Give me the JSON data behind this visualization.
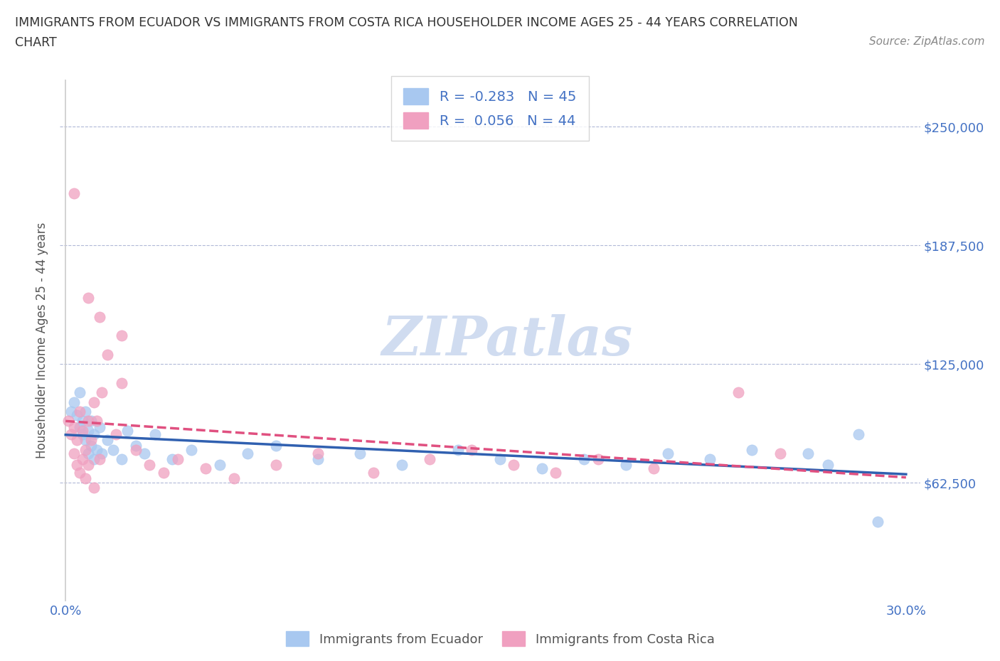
{
  "title_line1": "IMMIGRANTS FROM ECUADOR VS IMMIGRANTS FROM COSTA RICA HOUSEHOLDER INCOME AGES 25 - 44 YEARS CORRELATION",
  "title_line2": "CHART",
  "source": "Source: ZipAtlas.com",
  "ylabel": "Householder Income Ages 25 - 44 years",
  "xlim": [
    -0.002,
    0.305
  ],
  "ylim": [
    0,
    275000
  ],
  "yticks": [
    0,
    62500,
    125000,
    187500,
    250000
  ],
  "ytick_labels_right": [
    "",
    "$62,500",
    "$125,000",
    "$187,500",
    "$250,000"
  ],
  "xtick_vals": [
    0.0,
    0.05,
    0.1,
    0.15,
    0.2,
    0.25,
    0.3
  ],
  "ecuador_color": "#A8C8F0",
  "costa_rica_color": "#F0A0C0",
  "ecuador_line_color": "#3060B0",
  "costa_rica_line_color": "#E05080",
  "legend_ecuador_label": "R = -0.283   N = 45",
  "legend_costa_rica_label": "R =  0.056   N = 44",
  "legend_label_ecuador": "Immigrants from Ecuador",
  "legend_label_costa_rica": "Immigrants from Costa Rica",
  "tick_color": "#4472C4",
  "background_color": "#FFFFFF",
  "grid_color": "#B0B8D8",
  "watermark_color": "#D0DCF0",
  "ecuador_x": [
    0.002,
    0.003,
    0.004,
    0.005,
    0.005,
    0.006,
    0.006,
    0.007,
    0.007,
    0.008,
    0.008,
    0.009,
    0.009,
    0.01,
    0.01,
    0.011,
    0.012,
    0.013,
    0.015,
    0.017,
    0.02,
    0.022,
    0.025,
    0.028,
    0.032,
    0.038,
    0.045,
    0.055,
    0.065,
    0.075,
    0.09,
    0.105,
    0.12,
    0.14,
    0.155,
    0.17,
    0.185,
    0.2,
    0.215,
    0.23,
    0.245,
    0.265,
    0.272,
    0.283,
    0.29
  ],
  "ecuador_y": [
    100000,
    105000,
    98000,
    92000,
    110000,
    88000,
    95000,
    85000,
    100000,
    90000,
    78000,
    95000,
    82000,
    88000,
    75000,
    80000,
    92000,
    78000,
    85000,
    80000,
    75000,
    90000,
    82000,
    78000,
    88000,
    75000,
    80000,
    72000,
    78000,
    82000,
    75000,
    78000,
    72000,
    80000,
    75000,
    70000,
    75000,
    72000,
    78000,
    75000,
    80000,
    78000,
    72000,
    88000,
    42000
  ],
  "costa_rica_x": [
    0.001,
    0.002,
    0.003,
    0.003,
    0.004,
    0.004,
    0.005,
    0.005,
    0.006,
    0.006,
    0.007,
    0.007,
    0.008,
    0.008,
    0.009,
    0.01,
    0.01,
    0.011,
    0.012,
    0.013,
    0.015,
    0.018,
    0.02,
    0.025,
    0.03,
    0.035,
    0.04,
    0.05,
    0.06,
    0.075,
    0.09,
    0.11,
    0.13,
    0.145,
    0.16,
    0.175,
    0.19,
    0.21,
    0.24,
    0.255,
    0.003,
    0.008,
    0.012,
    0.02
  ],
  "costa_rica_y": [
    95000,
    88000,
    92000,
    78000,
    85000,
    72000,
    100000,
    68000,
    90000,
    75000,
    80000,
    65000,
    95000,
    72000,
    85000,
    105000,
    60000,
    95000,
    75000,
    110000,
    130000,
    88000,
    115000,
    80000,
    72000,
    68000,
    75000,
    70000,
    65000,
    72000,
    78000,
    68000,
    75000,
    80000,
    72000,
    68000,
    75000,
    70000,
    110000,
    78000,
    215000,
    160000,
    150000,
    140000
  ]
}
